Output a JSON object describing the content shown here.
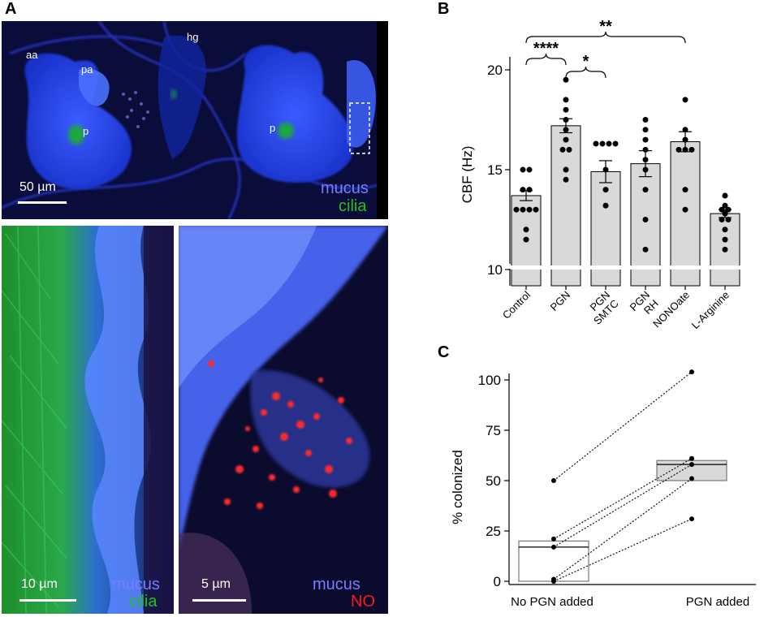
{
  "panels": {
    "a": "A",
    "b": "B",
    "c": "C"
  },
  "micrographs": {
    "top": {
      "labels": {
        "aa": "aa",
        "pa": "pa",
        "hg": "hg",
        "p_left": "p",
        "p_right": "p"
      },
      "scale": "50 µm",
      "legend": [
        "mucus",
        "cilia"
      ]
    },
    "bottom_left": {
      "scale": "10 µm",
      "legend": [
        "mucus",
        "cilia"
      ]
    },
    "bottom_right": {
      "scale": "5 µm",
      "legend": [
        "mucus",
        "NO"
      ]
    }
  },
  "colors": {
    "mucus": "#7b7bff",
    "cilia": "#22c022",
    "NO": "#ff1a1a",
    "bar_fill": "#d9d9d9"
  },
  "chart_data": [
    {
      "type": "bar",
      "ylabel": "CBF (Hz)",
      "ylim": [
        10,
        20
      ],
      "axis_break": true,
      "yticks": [
        10,
        15,
        20
      ],
      "categories": [
        "Control",
        "PGN",
        "PGN SMTC",
        "PGN RH",
        "NONOate",
        "L-Arginine"
      ],
      "values": [
        13.7,
        17.2,
        14.9,
        15.3,
        16.4,
        12.8
      ],
      "sem": [
        0.25,
        0.35,
        0.55,
        0.65,
        0.5,
        0.2
      ],
      "points": [
        [
          15.0,
          15.0,
          14.0,
          14.0,
          13.0,
          13.0,
          13.0,
          13.0,
          12.0,
          11.5
        ],
        [
          19.5,
          18.5,
          18.0,
          17.5,
          17.0,
          16.5,
          16.0,
          16.0,
          15.0,
          14.5
        ],
        [
          16.3,
          16.3,
          16.3,
          16.3,
          15.0,
          14.0,
          13.2
        ],
        [
          17.5,
          17.0,
          16.5,
          16.0,
          15.5,
          15.0,
          14.0,
          12.5,
          11.0
        ],
        [
          18.5,
          17.0,
          16.5,
          16.0,
          16.0,
          16.0,
          14.0,
          13.0
        ],
        [
          13.7,
          13.2,
          13.0,
          13.0,
          12.8,
          12.5,
          12.5,
          12.0,
          11.5,
          11.0
        ]
      ],
      "significance": [
        {
          "from": "Control",
          "to": "PGN",
          "label": "****"
        },
        {
          "from": "PGN",
          "to": "PGN SMTC",
          "label": "*"
        },
        {
          "from": "Control",
          "to": "NONOate",
          "label": "**"
        }
      ]
    },
    {
      "type": "scatter",
      "ylabel": "% colonized",
      "categories": [
        "No PGN added",
        "PGN added"
      ],
      "ylim": [
        0,
        105
      ],
      "yticks": [
        0,
        25,
        50,
        75,
        100
      ],
      "boxes": [
        {
          "q1": 0,
          "median": 17,
          "q3": 20
        },
        {
          "q1": 50,
          "median": 58,
          "q3": 60
        }
      ],
      "pairs": [
        [
          50,
          104
        ],
        [
          21,
          61
        ],
        [
          17,
          58
        ],
        [
          1,
          51
        ],
        [
          0,
          31
        ]
      ]
    }
  ]
}
